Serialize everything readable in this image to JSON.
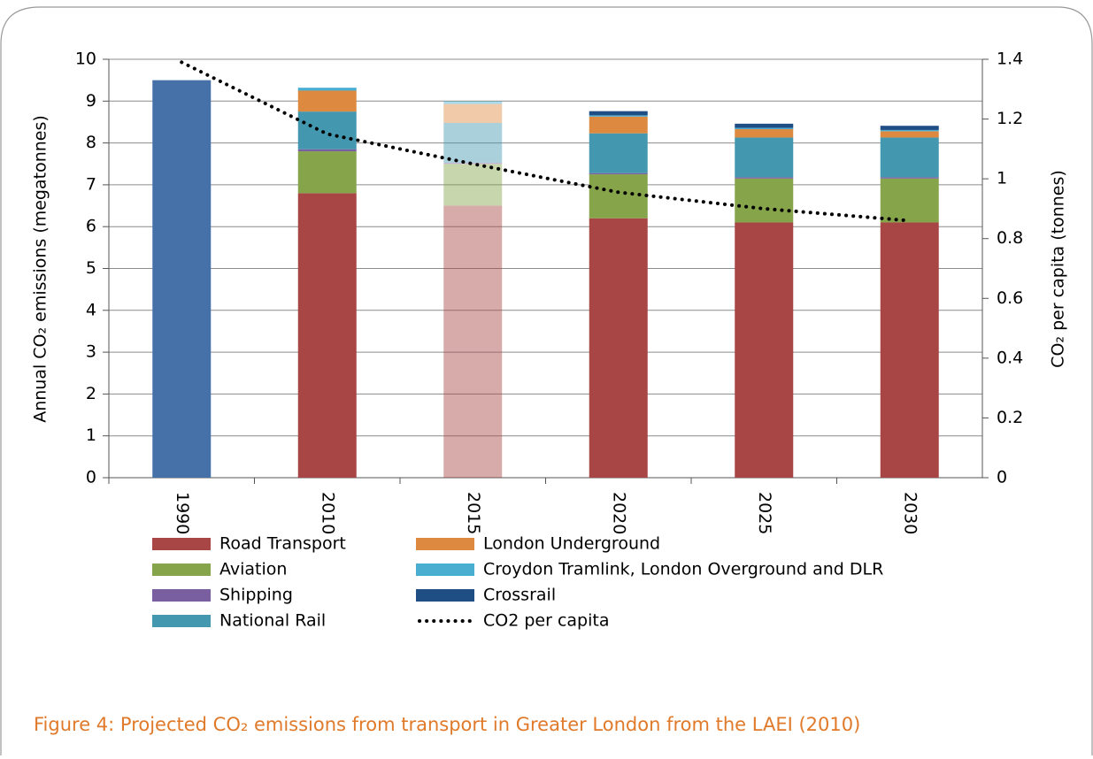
{
  "chart_data": {
    "type": "stacked_bar_line",
    "y_label": "Annual CO₂ emissions (megatonnes)",
    "y2_label": "CO₂ per capita (tonnes)",
    "caption": "Figure 4: Projected CO₂ emissions from transport in Greater London from the LAEI (2010)",
    "categories": [
      "1990",
      "2010",
      "2015",
      "2020",
      "2025",
      "2030"
    ],
    "faded": [
      false,
      false,
      true,
      false,
      false,
      false
    ],
    "ylim": [
      0,
      10
    ],
    "yticks": [
      0,
      1,
      2,
      3,
      4,
      5,
      6,
      7,
      8,
      9,
      10
    ],
    "y2lim": [
      0,
      1.4
    ],
    "y2ticks": [
      0,
      0.2,
      0.4,
      0.6,
      0.8,
      1,
      1.2,
      1.4
    ],
    "grid": true,
    "series": [
      {
        "color": "#4670a8",
        "values": [
          9.5,
          null,
          null,
          null,
          null,
          null
        ]
      },
      {
        "name": "Road Transport",
        "color": "#a84545",
        "values": [
          null,
          6.8,
          6.5,
          6.2,
          6.1,
          6.1
        ]
      },
      {
        "name": "Aviation",
        "color": "#86a54a",
        "values": [
          null,
          1.0,
          1.0,
          1.05,
          1.05,
          1.05
        ]
      },
      {
        "name": "Shipping",
        "color": "#7a5fa0",
        "values": [
          null,
          0.05,
          0.03,
          0.03,
          0.03,
          0.03
        ]
      },
      {
        "name": "National Rail",
        "color": "#4398b0",
        "values": [
          null,
          0.9,
          0.95,
          0.95,
          0.95,
          0.95
        ]
      },
      {
        "name": "London Underground",
        "color": "#dd8a40",
        "values": [
          null,
          0.5,
          0.45,
          0.4,
          0.2,
          0.15
        ]
      },
      {
        "name": "Croydon Tramlink, London Overground and DLR",
        "color": "#4aaed0",
        "values": [
          null,
          0.07,
          0.07,
          0.03,
          0.03,
          0.03
        ]
      },
      {
        "name": "Crossrail",
        "color": "#1f4e85",
        "values": [
          null,
          0,
          0,
          0.1,
          0.1,
          0.1
        ]
      },
      {
        "name": "CO2 per capita",
        "color": "#000000",
        "axis": "y2",
        "style": "dotted",
        "values": [
          1.39,
          1.15,
          1.05,
          0.955,
          0.9,
          0.86
        ]
      }
    ]
  }
}
